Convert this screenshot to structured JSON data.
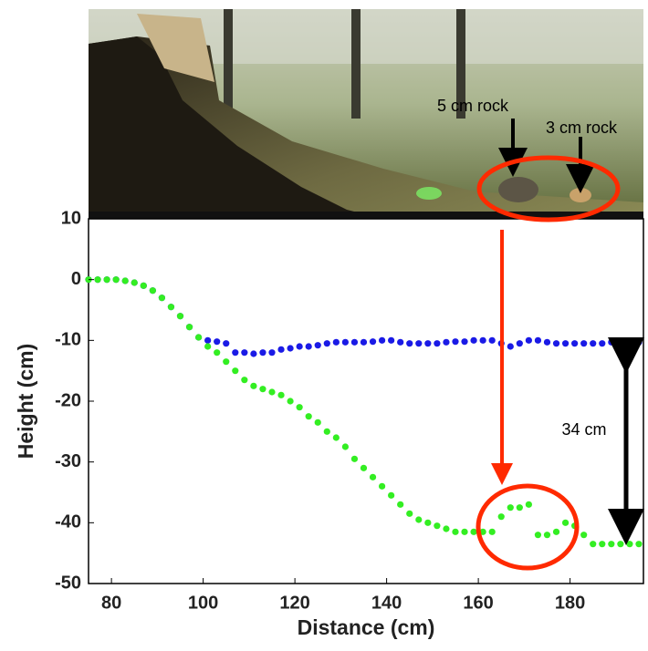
{
  "chart_data": {
    "type": "scatter",
    "annotations": [
      "5 cm rock",
      "3 cm rock",
      "34 cm"
    ],
    "x_label": "Distance (cm)",
    "y_label": "Height (cm)",
    "x": [
      75,
      77,
      79,
      81,
      83,
      85,
      87,
      89,
      91,
      93,
      95,
      97,
      99,
      101,
      103,
      105,
      107,
      109,
      111,
      113,
      115,
      117,
      119,
      121,
      123,
      125,
      127,
      129,
      131,
      133,
      135,
      137,
      139,
      141,
      143,
      145,
      147,
      149,
      151,
      153,
      155,
      157,
      159,
      161,
      163,
      165,
      167,
      169,
      171,
      173,
      175,
      177,
      179,
      181,
      183,
      185,
      187,
      189,
      191,
      193,
      195
    ],
    "series": [
      {
        "color": "#1a1ae6",
        "values": [
          0,
          0,
          0,
          0,
          -0.2,
          -0.5,
          -1,
          -1.8,
          -3,
          -4.5,
          -6,
          -7.8,
          -9.5,
          -10,
          -10.2,
          -10.5,
          -12,
          -12,
          -12.2,
          -12,
          -12,
          -11.5,
          -11.3,
          -11,
          -11,
          -10.8,
          -10.5,
          -10.3,
          -10.3,
          -10.3,
          -10.3,
          -10.2,
          -10,
          -10,
          -10.3,
          -10.5,
          -10.5,
          -10.5,
          -10.5,
          -10.3,
          -10.2,
          -10.2,
          -10,
          -10,
          -10,
          -10.5,
          -11,
          -10.5,
          -10,
          -10,
          -10.3,
          -10.5,
          -10.5,
          -10.5,
          -10.5,
          -10.5,
          -10.5,
          -10.3,
          -10.3,
          -10.3,
          -10.3
        ]
      },
      {
        "color": "#33ee22",
        "values": [
          0,
          0,
          0,
          0,
          -0.2,
          -0.5,
          -1,
          -1.8,
          -3,
          -4.5,
          -6,
          -7.8,
          -9.5,
          -11,
          -12,
          -13.5,
          -15,
          -16.5,
          -17.5,
          -18,
          -18.5,
          -19,
          -20,
          -21,
          -22.5,
          -23.5,
          -25,
          -26,
          -27.5,
          -29.5,
          -31,
          -32.5,
          -34,
          -35.5,
          -37,
          -38.5,
          -39.5,
          -40,
          -40.5,
          -41,
          -41.5,
          -41.5,
          -41.5,
          -41.5,
          -41.5,
          -39,
          -37.5,
          -37.5,
          -37,
          -42,
          -42,
          -41.5,
          -40,
          -40.5,
          -42,
          -43.5,
          -43.5,
          -43.5,
          -43.5,
          -43.5,
          -43.5
        ]
      }
    ],
    "xlim": [
      75,
      196
    ],
    "ylim": [
      -50,
      10
    ],
    "xticks": [
      80,
      100,
      120,
      140,
      160,
      180
    ],
    "yticks": [
      -50,
      -40,
      -30,
      -20,
      -10,
      0,
      10
    ]
  }
}
